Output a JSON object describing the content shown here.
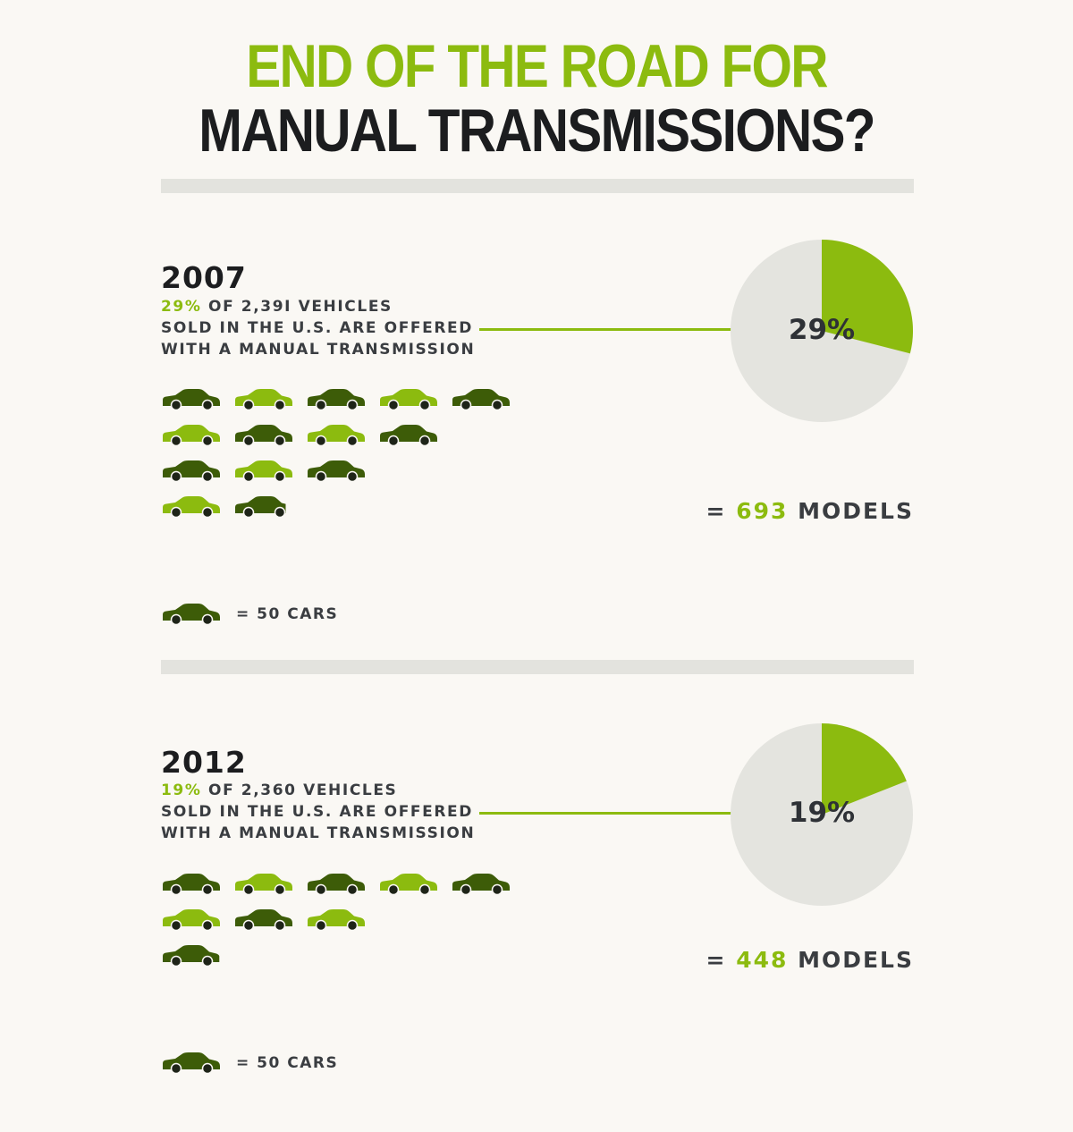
{
  "title": {
    "line1": "END OF THE ROAD FOR",
    "line2": "MANUAL TRANSMISSIONS?"
  },
  "colors": {
    "accent": "#8cbb0f",
    "dark_car": "#3d5c08",
    "light_car": "#8cbb0f",
    "pie_bg": "#e4e4df",
    "text_dark": "#1c1d1f"
  },
  "icons": {
    "car": "car-icon"
  },
  "chart_data": [
    {
      "type": "pie",
      "year": "2007",
      "percent_label": "29%",
      "desc_line1_rest": " OF 2,39I VEHICLES",
      "desc_line2": "SOLD IN THE U.S. ARE OFFERED",
      "desc_line3": "WITH A MANUAL TRANSMISSION",
      "slices": [
        {
          "label": "manual",
          "value": 29
        },
        {
          "label": "other",
          "value": 71
        }
      ],
      "pictogram": {
        "cars": 14,
        "rows": [
          5,
          4,
          3,
          2
        ],
        "last_partial": 0.86
      },
      "models_prefix": "= ",
      "models_value": "693",
      "models_suffix": " MODELS",
      "legend_text": "= 50 CARS"
    },
    {
      "type": "pie",
      "year": "2012",
      "percent_label": "19%",
      "desc_line1_rest": " OF 2,360 VEHICLES",
      "desc_line2": "SOLD IN THE U.S. ARE OFFERED",
      "desc_line3": "WITH A MANUAL TRANSMISSION",
      "slices": [
        {
          "label": "manual",
          "value": 19
        },
        {
          "label": "other",
          "value": 81
        }
      ],
      "pictogram": {
        "cars": 9,
        "rows": [
          5,
          3,
          1
        ],
        "last_partial": 0.96
      },
      "models_prefix": "= ",
      "models_value": "448",
      "models_suffix": " MODELS",
      "legend_text": "= 50 CARS"
    }
  ]
}
